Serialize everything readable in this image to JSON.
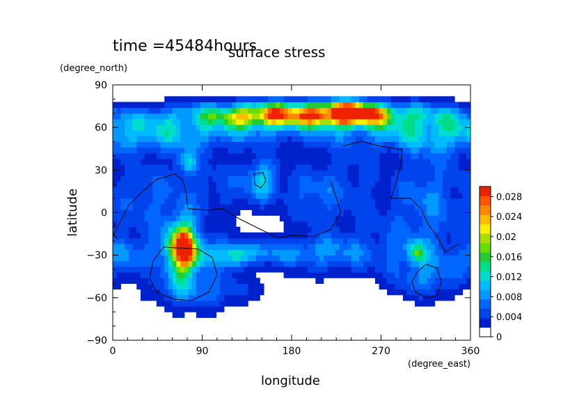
{
  "chart_data": {
    "type": "heatmap",
    "time_label": "time =45484hours",
    "title": "surface stress",
    "xlabel": "longitude",
    "ylabel": "latitude",
    "x_unit": "(degree_east)",
    "y_unit": "(degree_north)",
    "xlim": [
      0,
      360
    ],
    "ylim": [
      -90,
      90
    ],
    "x_ticks": [
      "0",
      "90",
      "180",
      "270",
      "360"
    ],
    "y_ticks": [
      "90",
      "60",
      "30",
      "0",
      "−30",
      "−60",
      "−90"
    ],
    "colorbar": {
      "range": [
        0,
        0.03
      ],
      "tick_labels": [
        "0.028",
        "0.024",
        "0.02",
        "0.016",
        "0.012",
        "0.008",
        "0.004",
        "0"
      ],
      "colors": [
        "#ffffff",
        "#0022cc",
        "#0044ee",
        "#0066ff",
        "#0099ff",
        "#00bbff",
        "#00ddcc",
        "#00dd88",
        "#22cc33",
        "#66dd00",
        "#aadd00",
        "#ffee00",
        "#ffbb00",
        "#ff8800",
        "#ff5500",
        "#ee2200"
      ]
    },
    "features": [
      {
        "lon": 200,
        "lat": 70,
        "sx": 80,
        "sy": 6,
        "v": 0.02
      },
      {
        "lon": 235,
        "lat": 70,
        "sx": 22,
        "sy": 5,
        "v": 0.028
      },
      {
        "lon": 150,
        "lat": 68,
        "sx": 25,
        "sy": 5,
        "v": 0.012
      },
      {
        "lon": 180,
        "lat": 62,
        "sx": 180,
        "sy": 10,
        "v": 0.008
      },
      {
        "lon": 50,
        "lat": 55,
        "sx": 60,
        "sy": 10,
        "v": 0.007
      },
      {
        "lon": 320,
        "lat": 55,
        "sx": 40,
        "sy": 10,
        "v": 0.007
      },
      {
        "lon": 70,
        "lat": -25,
        "sx": 10,
        "sy": 14,
        "v": 0.03
      },
      {
        "lon": 75,
        "lat": -35,
        "sx": 30,
        "sy": 25,
        "v": 0.007
      },
      {
        "lon": 140,
        "lat": -28,
        "sx": 70,
        "sy": 7,
        "v": 0.008
      },
      {
        "lon": 125,
        "lat": -30,
        "sx": 8,
        "sy": 5,
        "v": 0.012
      },
      {
        "lon": 75,
        "lat": 35,
        "sx": 7,
        "sy": 6,
        "v": 0.012
      },
      {
        "lon": 120,
        "lat": 20,
        "sx": 50,
        "sy": 15,
        "v": 0.006
      },
      {
        "lon": 150,
        "lat": 25,
        "sx": 10,
        "sy": 10,
        "v": 0.009
      },
      {
        "lon": 30,
        "lat": 10,
        "sx": 25,
        "sy": 20,
        "v": 0.006
      },
      {
        "lon": 310,
        "lat": -20,
        "sx": 30,
        "sy": 25,
        "v": 0.007
      },
      {
        "lon": 305,
        "lat": -28,
        "sx": 6,
        "sy": 5,
        "v": 0.012
      },
      {
        "lon": 320,
        "lat": 20,
        "sx": 25,
        "sy": 20,
        "v": 0.006
      },
      {
        "lon": 240,
        "lat": 20,
        "sx": 30,
        "sy": 30,
        "v": 0.005
      },
      {
        "lon": 220,
        "lat": -30,
        "sx": 40,
        "sy": 12,
        "v": 0.005
      },
      {
        "lon": 10,
        "lat": -30,
        "sx": 15,
        "sy": 10,
        "v": 0.006
      },
      {
        "lon": 100,
        "lat": -55,
        "sx": 40,
        "sy": 8,
        "v": 0.005
      },
      {
        "lon": 320,
        "lat": -45,
        "sx": 25,
        "sy": 10,
        "v": 0.006
      },
      {
        "lon": 200,
        "lat": 10,
        "sx": 20,
        "sy": 15,
        "v": 0.005
      }
    ]
  }
}
